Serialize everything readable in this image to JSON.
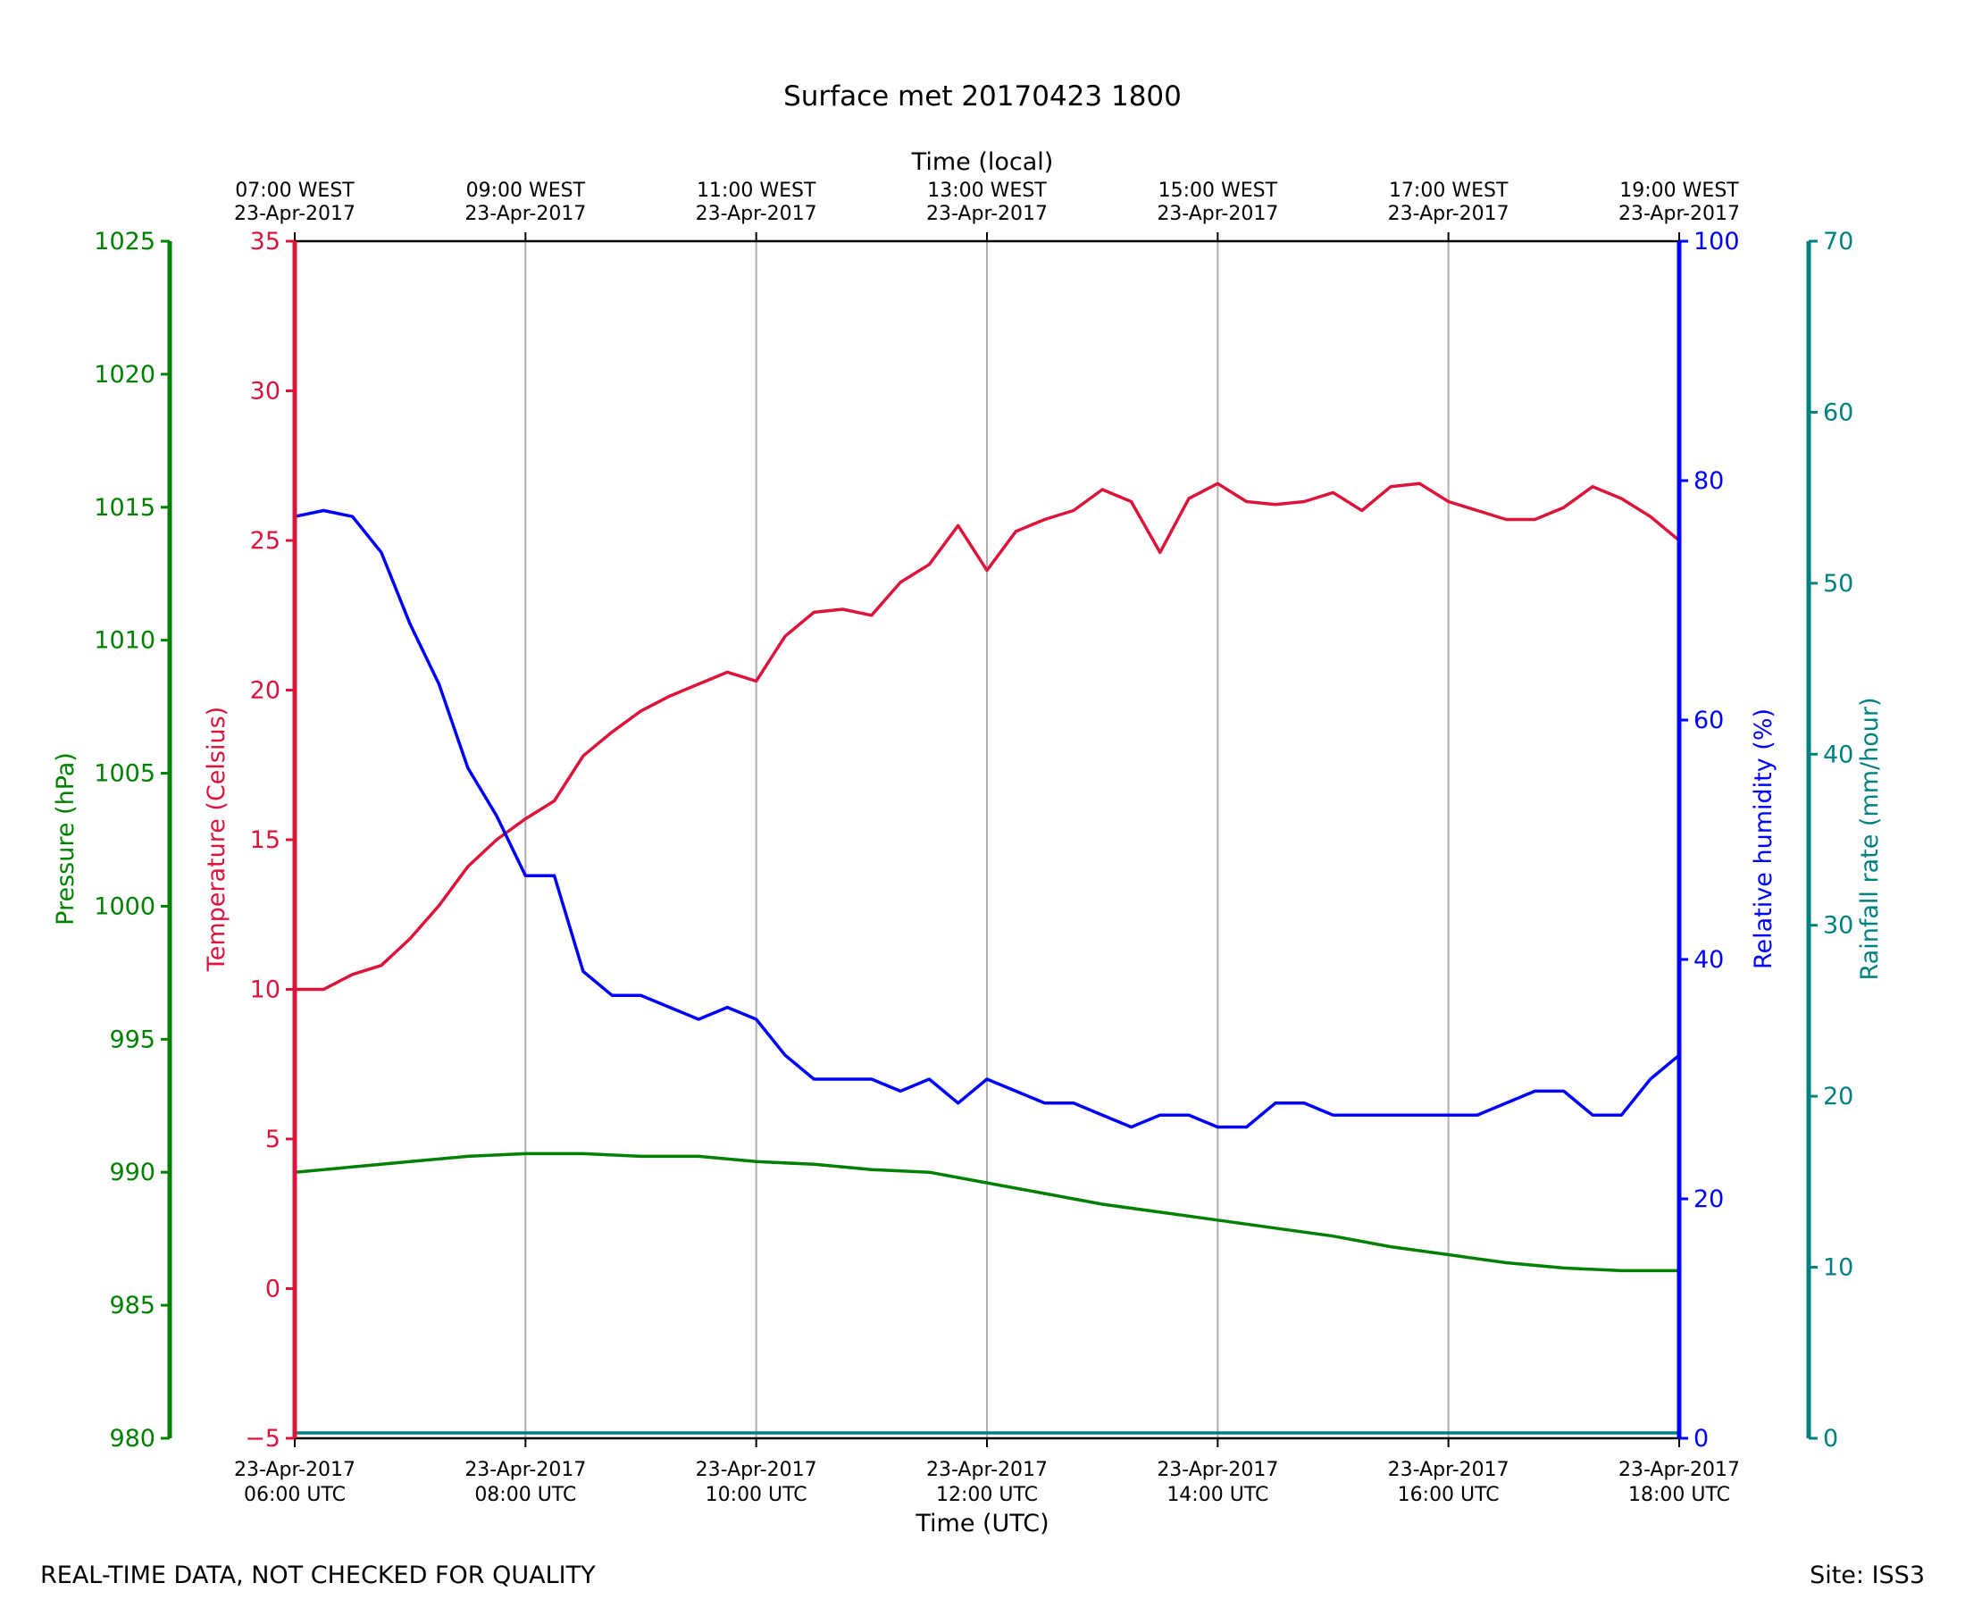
{
  "chart_data": {
    "type": "line",
    "title": "Surface met 20170423 1800",
    "top_xlabel": "Time (local)",
    "xlabel": "Time (UTC)",
    "footer_left": "REAL-TIME DATA, NOT CHECKED FOR QUALITY",
    "footer_right": "Site: ISS3",
    "x_range_hours_utc": [
      6,
      18
    ],
    "x_ticks": [
      {
        "hour": 6,
        "date": "23-Apr-2017",
        "utc": "06:00 UTC",
        "local": "07:00 WEST"
      },
      {
        "hour": 8,
        "date": "23-Apr-2017",
        "utc": "08:00 UTC",
        "local": "09:00 WEST"
      },
      {
        "hour": 10,
        "date": "23-Apr-2017",
        "utc": "10:00 UTC",
        "local": "11:00 WEST"
      },
      {
        "hour": 12,
        "date": "23-Apr-2017",
        "utc": "12:00 UTC",
        "local": "13:00 WEST"
      },
      {
        "hour": 14,
        "date": "23-Apr-2017",
        "utc": "14:00 UTC",
        "local": "15:00 WEST"
      },
      {
        "hour": 16,
        "date": "23-Apr-2017",
        "utc": "16:00 UTC",
        "local": "17:00 WEST"
      },
      {
        "hour": 18,
        "date": "23-Apr-2017",
        "utc": "18:00 UTC",
        "local": "19:00 WEST"
      }
    ],
    "grid": "vertical lines at x ticks",
    "axes": {
      "pressure": {
        "label": "Pressure (hPa)",
        "ylim": [
          980,
          1025
        ],
        "ticks": [
          980,
          985,
          990,
          995,
          1000,
          1005,
          1010,
          1015,
          1020,
          1025
        ],
        "color": "#008000"
      },
      "temperature": {
        "label": "Temperature (Celsius)",
        "ylim": [
          -5,
          35
        ],
        "ticks": [
          -5,
          0,
          5,
          10,
          15,
          20,
          25,
          30,
          35
        ],
        "color": "#dc143c"
      },
      "humidity": {
        "label": "Relative humidity (%)",
        "ylim": [
          0,
          100
        ],
        "ticks": [
          0,
          20,
          40,
          60,
          80,
          100
        ],
        "color": "#0000ff"
      },
      "rainfall": {
        "label": "Rainfall rate (mm/hour)",
        "ylim": [
          0,
          70
        ],
        "ticks": [
          0,
          10,
          20,
          30,
          40,
          50,
          60,
          70
        ],
        "color": "#008080"
      }
    },
    "series": [
      {
        "name": "Temperature (Celsius)",
        "axis": "temperature",
        "x": [
          6.0,
          6.25,
          6.5,
          6.75,
          7.0,
          7.25,
          7.5,
          7.75,
          8.0,
          8.25,
          8.5,
          8.75,
          9.0,
          9.25,
          9.5,
          9.75,
          10.0,
          10.25,
          10.5,
          10.75,
          11.0,
          11.25,
          11.5,
          11.75,
          12.0,
          12.25,
          12.5,
          12.75,
          13.0,
          13.25,
          13.5,
          13.75,
          14.0,
          14.25,
          14.5,
          14.75,
          15.0,
          15.25,
          15.5,
          15.75,
          16.0,
          16.25,
          16.5,
          16.75,
          17.0,
          17.25,
          17.5,
          17.75,
          18.0
        ],
        "values": [
          10.0,
          10.0,
          10.5,
          10.8,
          11.7,
          12.8,
          14.1,
          15.0,
          15.7,
          16.3,
          17.8,
          18.6,
          19.3,
          19.8,
          20.2,
          20.6,
          20.3,
          21.8,
          22.6,
          22.7,
          22.5,
          23.6,
          24.2,
          25.5,
          24.0,
          25.3,
          25.7,
          26.0,
          26.7,
          26.3,
          24.6,
          26.4,
          26.9,
          26.3,
          26.2,
          26.3,
          26.6,
          26.0,
          26.8,
          26.9,
          26.3,
          26.0,
          25.7,
          25.7,
          26.1,
          26.8,
          26.4,
          25.8,
          25.0
        ]
      },
      {
        "name": "Relative humidity (%)",
        "axis": "humidity",
        "x": [
          6.0,
          6.25,
          6.5,
          6.75,
          7.0,
          7.25,
          7.5,
          7.75,
          8.0,
          8.25,
          8.5,
          8.75,
          9.0,
          9.25,
          9.5,
          9.75,
          10.0,
          10.25,
          10.5,
          10.75,
          11.0,
          11.25,
          11.5,
          11.75,
          12.0,
          12.25,
          12.5,
          12.75,
          13.0,
          13.25,
          13.5,
          13.75,
          14.0,
          14.25,
          14.5,
          14.75,
          15.0,
          15.25,
          15.5,
          15.75,
          16.0,
          16.25,
          16.5,
          16.75,
          17.0,
          17.25,
          17.5,
          17.75,
          18.0
        ],
        "values": [
          77,
          77.5,
          77,
          74,
          68,
          63,
          56,
          52,
          47,
          47,
          39,
          37,
          37,
          36,
          35,
          36,
          35,
          32,
          30,
          30,
          30,
          29,
          30,
          28,
          30,
          29,
          28,
          28,
          27,
          26,
          27,
          27,
          26,
          26,
          28,
          28,
          27,
          27,
          27,
          27,
          27,
          27,
          28,
          29,
          29,
          27,
          27,
          30,
          32
        ]
      },
      {
        "name": "Pressure (hPa)",
        "axis": "pressure",
        "x": [
          6.0,
          6.5,
          7.0,
          7.5,
          8.0,
          8.5,
          9.0,
          9.5,
          10.0,
          10.5,
          11.0,
          11.5,
          12.0,
          12.5,
          13.0,
          13.5,
          14.0,
          14.5,
          15.0,
          15.5,
          16.0,
          16.5,
          17.0,
          17.5,
          18.0
        ],
        "values": [
          990.0,
          990.2,
          990.4,
          990.6,
          990.7,
          990.7,
          990.6,
          990.6,
          990.4,
          990.3,
          990.1,
          990.0,
          989.6,
          989.2,
          988.8,
          988.5,
          988.2,
          987.9,
          987.6,
          987.2,
          986.9,
          986.6,
          986.4,
          986.3,
          986.3
        ]
      },
      {
        "name": "Rainfall rate (mm/hour)",
        "axis": "rainfall",
        "x": [
          6.0,
          18.0
        ],
        "values": [
          0,
          0
        ]
      }
    ]
  }
}
